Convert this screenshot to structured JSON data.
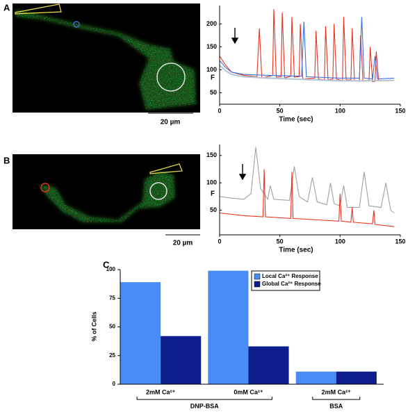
{
  "chart_data": [
    {
      "type": "line",
      "panel_label": "A",
      "scale_bar_label": "20 µm",
      "x_label": "Time (sec)",
      "y_label": "F",
      "xlim": [
        0,
        150
      ],
      "xticks": [
        0,
        50,
        100,
        150
      ],
      "ylim": [
        25,
        240
      ],
      "yticks": [
        50,
        100,
        150,
        200
      ],
      "series": [
        {
          "color": "#e8321e",
          "x": [
            0,
            5,
            10,
            20,
            31,
            33,
            35,
            44,
            45,
            47,
            51,
            52,
            54,
            59,
            60,
            62,
            66,
            67,
            69,
            79,
            80,
            82,
            87,
            88,
            90,
            94,
            95,
            97,
            102,
            103,
            105,
            109,
            110,
            112,
            116,
            117,
            119,
            124,
            125,
            127,
            129,
            130,
            132,
            145
          ],
          "values": [
            130,
            110,
            95,
            88,
            85,
            190,
            82,
            88,
            232,
            84,
            85,
            225,
            82,
            86,
            215,
            84,
            85,
            200,
            80,
            82,
            185,
            80,
            78,
            195,
            78,
            80,
            200,
            80,
            76,
            215,
            78,
            78,
            190,
            76,
            75,
            175,
            75,
            76,
            150,
            74,
            75,
            140,
            76,
            78
          ]
        },
        {
          "color": "#3a6fe0",
          "x": [
            0,
            5,
            10,
            20,
            40,
            68,
            70,
            72,
            100,
            116,
            118,
            120,
            127,
            129,
            131,
            145
          ],
          "values": [
            120,
            105,
            95,
            90,
            88,
            86,
            205,
            85,
            82,
            82,
            215,
            82,
            80,
            130,
            80,
            82
          ]
        },
        {
          "color": "#b8c6d8",
          "x": [
            0,
            5,
            10,
            20,
            40,
            60,
            80,
            100,
            120,
            145
          ],
          "values": [
            110,
            98,
            90,
            85,
            82,
            80,
            78,
            76,
            76,
            77
          ]
        }
      ]
    },
    {
      "type": "line",
      "panel_label": "B",
      "scale_bar_label": "20 µm",
      "x_label": "Time (sec)",
      "y_label": "F",
      "xlim": [
        0,
        150
      ],
      "xticks": [
        0,
        50,
        100,
        150
      ],
      "ylim": [
        5,
        170
      ],
      "yticks": [
        50,
        100,
        150
      ],
      "series": [
        {
          "color": "#a0a0a0",
          "x": [
            0,
            10,
            20,
            26,
            30,
            34,
            40,
            42,
            45,
            58,
            62,
            66,
            73,
            77,
            81,
            89,
            92,
            95,
            100,
            103,
            106,
            116,
            120,
            124,
            134,
            138,
            142,
            145
          ],
          "values": [
            75,
            72,
            70,
            80,
            165,
            90,
            70,
            95,
            70,
            68,
            130,
            75,
            65,
            110,
            65,
            60,
            100,
            62,
            58,
            95,
            55,
            55,
            120,
            58,
            55,
            100,
            50,
            45
          ]
        },
        {
          "color": "#f0321a",
          "x": [
            0,
            20,
            36,
            37,
            38,
            59,
            60,
            61,
            99,
            100,
            101,
            109,
            110,
            111,
            127,
            128,
            129,
            145
          ],
          "values": [
            45,
            40,
            38,
            125,
            38,
            35,
            120,
            35,
            30,
            80,
            30,
            28,
            55,
            28,
            25,
            50,
            24,
            20
          ]
        }
      ]
    },
    {
      "type": "bar",
      "panel_label": "C",
      "y_label": "% of Cells",
      "categories": [
        "2mM Ca²⁺",
        "0mM Ca²⁺",
        "2mM Ca²⁺"
      ],
      "group_labels": [
        "DNP-BSA",
        "BSA"
      ],
      "ylim": [
        0,
        100
      ],
      "yticks": [
        0,
        25,
        50,
        75,
        100
      ],
      "legend_position": "upper right",
      "series": [
        {
          "name": "Local Ca²⁺ Response",
          "color": "#4a8cf5",
          "values": [
            89,
            99,
            11
          ]
        },
        {
          "name": "Global Ca²⁺ Response",
          "color": "#0e1d8c",
          "values": [
            42,
            33,
            11
          ]
        }
      ]
    }
  ]
}
